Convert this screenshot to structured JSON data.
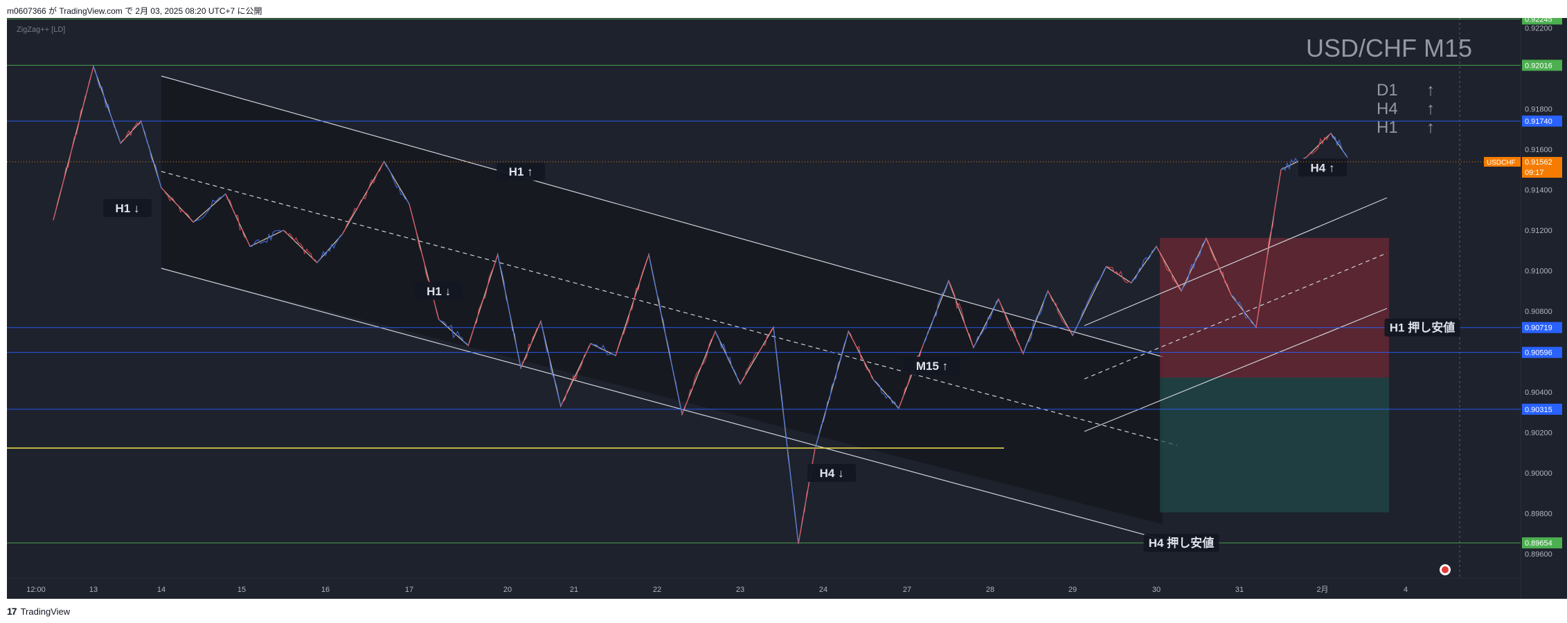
{
  "header": {
    "publish_text": "m0607366 が TradingView.com で 2月 03, 2025 08:20 UTC+7 に公開"
  },
  "footer": {
    "brand": "TradingView",
    "logo_mark": "17"
  },
  "chart_data": {
    "type": "line",
    "title": "USD/CHF M15",
    "symbol": "USDCHF",
    "indicator": "ZigZag++ [LD]",
    "timeframe_badges": [
      {
        "label": "D1",
        "arrow": "↑"
      },
      {
        "label": "H4",
        "arrow": "↑"
      },
      {
        "label": "H1",
        "arrow": "↑"
      }
    ],
    "y_axis": {
      "ylim": [
        0.8948,
        0.9225
      ],
      "ticks": [
        "0.92200",
        "0.91800",
        "0.91600",
        "0.91400",
        "0.91200",
        "0.91000",
        "0.90800",
        "0.90400",
        "0.90200",
        "0.90000",
        "0.89800",
        "0.89600"
      ]
    },
    "x_axis": {
      "ticks": [
        "12:00",
        "13",
        "14",
        "15",
        "16",
        "17",
        "20",
        "21",
        "22",
        "23",
        "24",
        "27",
        "28",
        "29",
        "30",
        "31",
        "2月",
        "4"
      ]
    },
    "price_labels": [
      {
        "value": 0.92245,
        "text": "0.92245",
        "color": "#4caf50"
      },
      {
        "value": 0.92016,
        "text": "0.92016",
        "color": "#4caf50"
      },
      {
        "value": 0.9174,
        "text": "0.91740",
        "color": "#2962ff"
      },
      {
        "value": 0.90719,
        "text": "0.90719",
        "color": "#2962ff"
      },
      {
        "value": 0.90596,
        "text": "0.90596",
        "color": "#2962ff"
      },
      {
        "value": 0.90315,
        "text": "0.90315",
        "color": "#2962ff"
      },
      {
        "value": 0.89654,
        "text": "0.89654",
        "color": "#4caf50"
      }
    ],
    "current_price": {
      "value": 0.91562,
      "text": "0.91562",
      "countdown": "09:17",
      "color": "#f57c00"
    },
    "annotations": [
      {
        "text": "H1 ↑",
        "date_index": 6.2,
        "price": 0.9149
      },
      {
        "text": "H1 ↓",
        "date_index": 1.5,
        "price": 0.9131
      },
      {
        "text": "H1 ↓",
        "date_index": 5.3,
        "price": 0.909
      },
      {
        "text": "M15 ↑",
        "date_index": 11.3,
        "price": 0.9053
      },
      {
        "text": "H4 ↓",
        "date_index": 10.1,
        "price": 0.9
      },
      {
        "text": "H4 ↑",
        "date_index": 16.0,
        "price": 0.9151
      },
      {
        "text": "H1 押し安値",
        "date_index": 17.2,
        "price": 0.90719
      },
      {
        "text": "H4 押し安値",
        "date_index": 14.3,
        "price": 0.89654
      }
    ],
    "zigzag": {
      "x": [
        0.3,
        1.0,
        1.4,
        1.7,
        2.0,
        2.4,
        2.8,
        3.1,
        3.5,
        3.9,
        4.2,
        4.7,
        5.0,
        5.3,
        5.6,
        5.9,
        6.2,
        6.5,
        6.8,
        7.2,
        7.5,
        7.9,
        8.3,
        8.7,
        9.0,
        9.4,
        9.7,
        9.9,
        10.3,
        10.6,
        10.9,
        11.2,
        11.5,
        11.8,
        12.1,
        12.4,
        12.7,
        13.0,
        13.4,
        13.7,
        14.0,
        14.3,
        14.6,
        14.9,
        15.2,
        15.5,
        15.8,
        16.1,
        16.3
      ],
      "y": [
        0.9125,
        0.9201,
        0.9163,
        0.9174,
        0.9141,
        0.9124,
        0.9138,
        0.9112,
        0.912,
        0.9104,
        0.9118,
        0.9154,
        0.9133,
        0.9076,
        0.9063,
        0.9108,
        0.9052,
        0.9075,
        0.9033,
        0.9064,
        0.9058,
        0.9108,
        0.9029,
        0.907,
        0.9044,
        0.9072,
        0.8965,
        0.9012,
        0.907,
        0.9046,
        0.9032,
        0.9064,
        0.9095,
        0.9062,
        0.9086,
        0.9059,
        0.909,
        0.9068,
        0.9102,
        0.9094,
        0.9112,
        0.909,
        0.9116,
        0.9088,
        0.9072,
        0.915,
        0.9156,
        0.9168,
        0.9156
      ]
    }
  }
}
